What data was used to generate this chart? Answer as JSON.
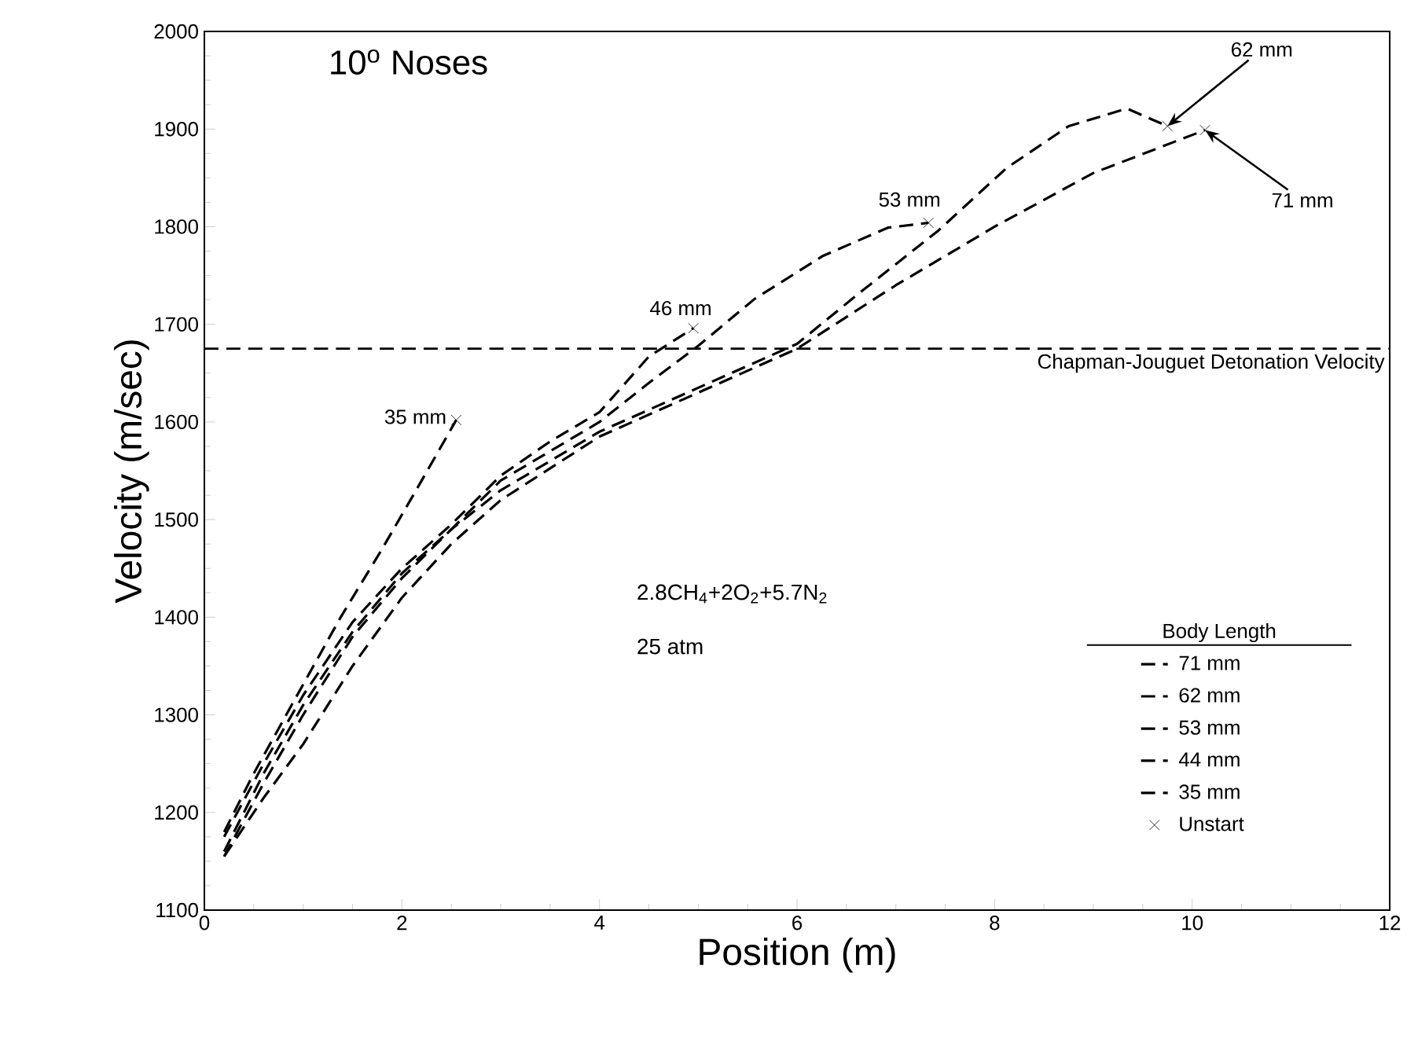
{
  "chart_data": {
    "type": "line",
    "title": "10$^{o}$ Noses",
    "xlabel": "Position (m)",
    "ylabel": "Velocity (m/sec)",
    "legend_title": "Body Length",
    "xlim": [
      0,
      12
    ],
    "xticks": [
      0,
      2,
      4,
      6,
      8,
      10,
      12
    ],
    "ylim": [
      1100,
      2000
    ],
    "yticks": [
      1100,
      1200,
      1300,
      1400,
      1500,
      1600,
      1700,
      1800,
      1900,
      2000
    ],
    "grid": false,
    "legend": "bottom right",
    "line_style": "dashed",
    "marker": "none",
    "series": [
      {
        "name": "71 mm",
        "color": "#000000",
        "x": [
          0.2,
          0.6,
          1,
          1.5,
          2,
          2.5,
          3,
          4,
          5,
          6,
          7,
          8,
          9,
          10.13
        ],
        "values": [
          1155,
          1215,
          1270,
          1350,
          1420,
          1475,
          1520,
          1585,
          1630,
          1675,
          1740,
          1800,
          1855,
          1899
        ]
      },
      {
        "name": "62 mm",
        "color": "#000000",
        "x": [
          0.2,
          0.6,
          1,
          1.5,
          2,
          2.5,
          3,
          4,
          5,
          6,
          6.63,
          7.43,
          8.12,
          8.75,
          9.34,
          9.75
        ],
        "values": [
          1155,
          1230,
          1300,
          1380,
          1440,
          1490,
          1530,
          1590,
          1635,
          1680,
          1732,
          1796,
          1860,
          1903,
          1921,
          1903
        ]
      },
      {
        "name": "53 mm",
        "color": "#000000",
        "x": [
          0.2,
          0.6,
          1,
          1.5,
          2,
          2.5,
          3,
          4,
          4.5,
          5,
          5.57,
          6.26,
          6.92,
          7.33
        ],
        "values": [
          1160,
          1240,
          1310,
          1385,
          1445,
          1490,
          1540,
          1600,
          1640,
          1678,
          1726,
          1770,
          1799,
          1804
        ]
      },
      {
        "name": "44 mm",
        "color": "#000000",
        "x": [
          0.2,
          0.6,
          1,
          1.5,
          2,
          2.5,
          3,
          3.5,
          4,
          4.5,
          4.95
        ],
        "values": [
          1175,
          1250,
          1320,
          1395,
          1450,
          1495,
          1545,
          1580,
          1610,
          1667,
          1696
        ]
      },
      {
        "name": "35 mm",
        "color": "#000000",
        "x": [
          0.2,
          0.5,
          0.9,
          1.38,
          1.8,
          2.2,
          2.55
        ],
        "values": [
          1180,
          1240,
          1313,
          1400,
          1470,
          1540,
          1602
        ]
      },
      {
        "name": "Unstart",
        "type": "scatter",
        "marker": "cross",
        "color": "#000000",
        "x": [
          2.55,
          4.95,
          7.33,
          9.75,
          10.13
        ],
        "values": [
          1602,
          1696,
          1804,
          1903,
          1899
        ]
      }
    ],
    "ref_lines": [
      {
        "axis": "y",
        "value": 1675,
        "label": "Chapman-Jouguet Detonation Velocity",
        "line_style": "dashed",
        "color": "#000000"
      }
    ],
    "annotations": [
      {
        "text": "35 mm",
        "x": 2.55,
        "y": 1602
      },
      {
        "text": "46 mm",
        "x": 4.95,
        "y": 1696
      },
      {
        "text": "53 mm",
        "x": 7.33,
        "y": 1804
      },
      {
        "text": "62 mm",
        "x": 9.75,
        "y": 1903
      },
      {
        "text": "71 mm",
        "x": 10.13,
        "y": 1899
      },
      "2.8CH$_{4}$+2O$_{2}$+5.7N$_{2}$",
      "25 atm"
    ]
  }
}
